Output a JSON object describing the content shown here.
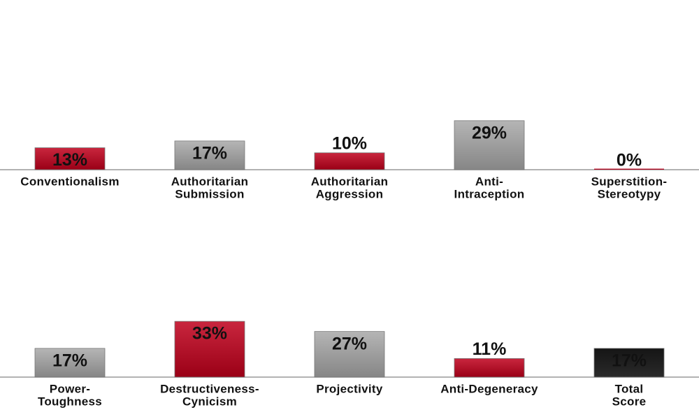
{
  "chart_data": [
    {
      "type": "bar",
      "categories": [
        [
          "Conventionalism"
        ],
        [
          "Authoritarian",
          "Submission"
        ],
        [
          "Authoritarian",
          "Aggression"
        ],
        [
          "Anti-",
          "Intraception"
        ],
        [
          "Superstition-",
          "Stereotypy"
        ]
      ],
      "values": [
        13,
        17,
        10,
        29,
        0
      ],
      "value_labels": [
        "13%",
        "17%",
        "10%",
        "29%",
        "0%"
      ],
      "colors": [
        "#c0001c",
        "#a8a8a8",
        "#c0001c",
        "#a8a8a8",
        "#c0001c"
      ]
    },
    {
      "type": "bar",
      "categories": [
        [
          "Power-",
          "Toughness"
        ],
        [
          "Destructiveness-",
          "Cynicism"
        ],
        [
          "Projectivity"
        ],
        [
          "Anti-Degeneracy"
        ],
        [
          "Total",
          "Score"
        ]
      ],
      "values": [
        17,
        33,
        27,
        11,
        17
      ],
      "value_labels": [
        "17%",
        "33%",
        "27%",
        "11%",
        "17%"
      ],
      "colors": [
        "#a8a8a8",
        "#c0001c",
        "#a8a8a8",
        "#c0001c",
        "#151515"
      ]
    }
  ]
}
